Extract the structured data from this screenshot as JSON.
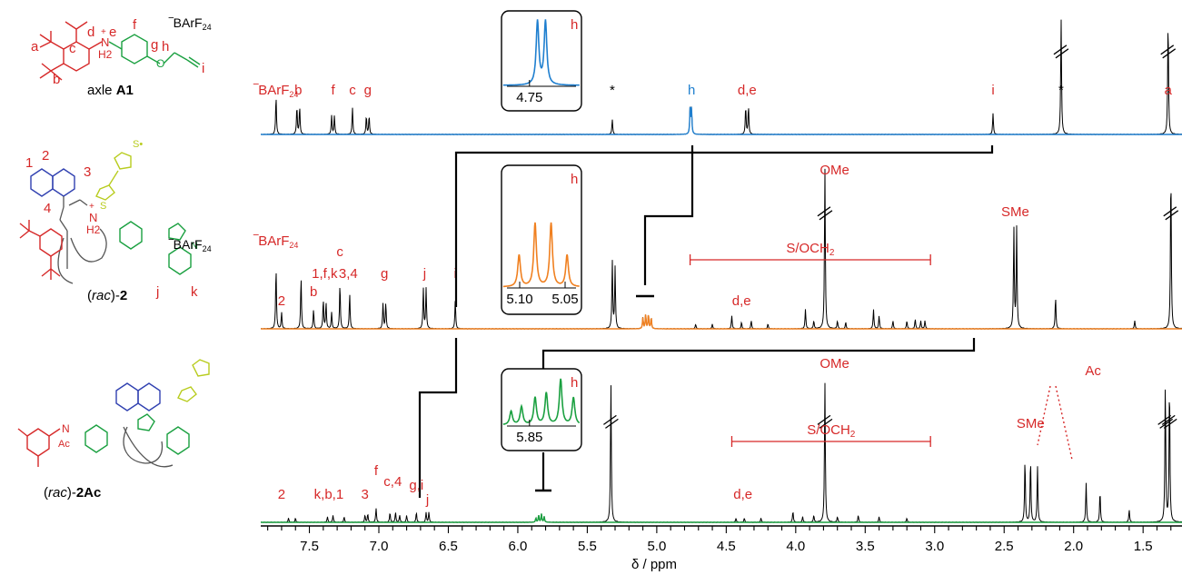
{
  "chart_data": {
    "type": "line",
    "xlabel": "δ / ppm",
    "xlim": [
      7.85,
      1.22
    ],
    "x_ticks": [
      "7.5",
      "7.0",
      "6.5",
      "6.0",
      "5.5",
      "5.0",
      "4.5",
      "4.0",
      "3.5",
      "3.0",
      "2.5",
      "2.0",
      "1.5"
    ],
    "colors": {
      "label": "#d62828",
      "trace": "#000000",
      "blue": "#1f7fcf",
      "orange": "#f08020",
      "green": "#1aa040",
      "lime": "#b8cc1e",
      "naph": "#3040b0"
    },
    "series": [
      {
        "compound": "axle A1",
        "compound_prefix": "axle ",
        "compound_bold": "A1",
        "counterion": "‾BArF24",
        "peaks": [
          {
            "x": 7.74,
            "h": 0.33
          },
          {
            "x": 7.59,
            "h": 0.24
          },
          {
            "x": 7.57,
            "h": 0.24
          },
          {
            "x": 7.34,
            "h": 0.16
          },
          {
            "x": 7.32,
            "h": 0.16
          },
          {
            "x": 7.19,
            "h": 0.23
          },
          {
            "x": 7.09,
            "h": 0.16
          },
          {
            "x": 7.07,
            "h": 0.16
          },
          {
            "x": 5.32,
            "h": 0.13
          },
          {
            "x": 4.76,
            "h": 0.22,
            "color": "blue"
          },
          {
            "x": 4.75,
            "h": 0.22,
            "color": "blue"
          },
          {
            "x": 4.36,
            "h": 0.24
          },
          {
            "x": 4.34,
            "h": 0.24
          },
          {
            "x": 2.58,
            "h": 0.18
          },
          {
            "x": 2.09,
            "h": 1.0,
            "broken": true
          },
          {
            "x": 1.32,
            "h": 1.0,
            "broken": true
          }
        ],
        "labels": [
          {
            "x": 7.74,
            "text": "‾BArF24"
          },
          {
            "x": 7.58,
            "text": "b"
          },
          {
            "x": 7.33,
            "text": "f"
          },
          {
            "x": 7.19,
            "text": "c"
          },
          {
            "x": 7.08,
            "text": "g"
          },
          {
            "x": 5.32,
            "text": "*",
            "black": true
          },
          {
            "x": 4.75,
            "text": "h",
            "color": "blue"
          },
          {
            "x": 4.35,
            "text": "d,e"
          },
          {
            "x": 2.58,
            "text": "i"
          },
          {
            "x": 2.09,
            "text": "*",
            "black": true
          },
          {
            "x": 1.32,
            "text": "a"
          }
        ],
        "inset": {
          "label": "h",
          "tick": "4.75",
          "color": "blue"
        }
      },
      {
        "compound": "(rac)-2",
        "compound_prefix": "(",
        "compound_italic": "rac",
        "compound_mid": ")-",
        "compound_bold": "2",
        "counterion": "‾BArF24",
        "peaks": [
          {
            "x": 7.74,
            "h": 0.38
          },
          {
            "x": 7.7,
            "h": 0.1
          },
          {
            "x": 7.56,
            "h": 0.32
          },
          {
            "x": 7.47,
            "h": 0.12
          },
          {
            "x": 7.4,
            "h": 0.18
          },
          {
            "x": 7.38,
            "h": 0.16
          },
          {
            "x": 7.34,
            "h": 0.1
          },
          {
            "x": 7.28,
            "h": 0.28
          },
          {
            "x": 7.21,
            "h": 0.22
          },
          {
            "x": 6.97,
            "h": 0.16
          },
          {
            "x": 6.95,
            "h": 0.16
          },
          {
            "x": 6.68,
            "h": 0.25
          },
          {
            "x": 6.66,
            "h": 0.25
          },
          {
            "x": 6.45,
            "h": 0.18
          },
          {
            "x": 5.32,
            "h": 0.42
          },
          {
            "x": 5.3,
            "h": 0.38
          },
          {
            "x": 5.1,
            "h": 0.07,
            "color": "orange"
          },
          {
            "x": 5.08,
            "h": 0.09,
            "color": "orange"
          },
          {
            "x": 5.06,
            "h": 0.09,
            "color": "orange"
          },
          {
            "x": 5.04,
            "h": 0.07,
            "color": "orange"
          },
          {
            "x": 4.72,
            "h": 0.03
          },
          {
            "x": 4.6,
            "h": 0.03
          },
          {
            "x": 4.46,
            "h": 0.08
          },
          {
            "x": 4.39,
            "h": 0.04
          },
          {
            "x": 4.32,
            "h": 0.05
          },
          {
            "x": 4.2,
            "h": 0.03
          },
          {
            "x": 3.93,
            "h": 0.12
          },
          {
            "x": 3.87,
            "h": 0.05
          },
          {
            "x": 3.79,
            "h": 1.0,
            "broken": true
          },
          {
            "x": 3.7,
            "h": 0.05
          },
          {
            "x": 3.64,
            "h": 0.04
          },
          {
            "x": 3.44,
            "h": 0.12
          },
          {
            "x": 3.4,
            "h": 0.08
          },
          {
            "x": 3.3,
            "h": 0.05
          },
          {
            "x": 3.2,
            "h": 0.05
          },
          {
            "x": 3.14,
            "h": 0.06
          },
          {
            "x": 3.1,
            "h": 0.05
          },
          {
            "x": 3.07,
            "h": 0.05
          },
          {
            "x": 2.43,
            "h": 0.62
          },
          {
            "x": 2.41,
            "h": 0.62
          },
          {
            "x": 2.13,
            "h": 0.2
          },
          {
            "x": 1.56,
            "h": 0.05
          },
          {
            "x": 1.3,
            "h": 1.0,
            "broken": true
          }
        ],
        "labels": [
          {
            "x": 7.74,
            "text": "‾BArF24",
            "up": 92
          },
          {
            "x": 7.7,
            "text": "2",
            "up": 26
          },
          {
            "x": 7.47,
            "text": "b",
            "up": 36
          },
          {
            "x": 7.39,
            "text": "1,f,k",
            "up": 56
          },
          {
            "x": 7.28,
            "text": "c",
            "up": 80
          },
          {
            "x": 7.22,
            "text": "3,4",
            "up": 56
          },
          {
            "x": 6.96,
            "text": "g",
            "up": 56
          },
          {
            "x": 6.67,
            "text": "j",
            "up": 56
          },
          {
            "x": 6.45,
            "text": "i",
            "up": 56
          },
          {
            "x": 4.39,
            "text": "d,e",
            "up": 26
          },
          {
            "x": 3.72,
            "text": "OMe",
            "up": 170
          },
          {
            "x": 2.42,
            "text": "SMe",
            "up": 124
          }
        ],
        "bracket": {
          "x1": 4.76,
          "x2": 3.03,
          "label": "S/OCH2"
        },
        "inset": {
          "label": "h",
          "ticks": [
            "5.10",
            "5.05"
          ],
          "color": "orange"
        }
      },
      {
        "compound": "(rac)-2Ac",
        "compound_prefix": "(",
        "compound_italic": "rac",
        "compound_mid": ")-",
        "compound_bold": "2Ac",
        "peaks": [
          {
            "x": 7.65,
            "h": 0.03
          },
          {
            "x": 7.6,
            "h": 0.03
          },
          {
            "x": 7.37,
            "h": 0.04
          },
          {
            "x": 7.33,
            "h": 0.05
          },
          {
            "x": 7.25,
            "h": 0.04
          },
          {
            "x": 7.1,
            "h": 0.05
          },
          {
            "x": 7.08,
            "h": 0.06
          },
          {
            "x": 7.02,
            "h": 0.1
          },
          {
            "x": 6.92,
            "h": 0.07
          },
          {
            "x": 6.88,
            "h": 0.07
          },
          {
            "x": 6.85,
            "h": 0.05
          },
          {
            "x": 6.8,
            "h": 0.05
          },
          {
            "x": 6.73,
            "h": 0.07
          },
          {
            "x": 6.66,
            "h": 0.07
          },
          {
            "x": 6.64,
            "h": 0.07
          },
          {
            "x": 5.87,
            "h": 0.03,
            "color": "green"
          },
          {
            "x": 5.85,
            "h": 0.05,
            "color": "green"
          },
          {
            "x": 5.83,
            "h": 0.06,
            "color": "green"
          },
          {
            "x": 5.81,
            "h": 0.04,
            "color": "green"
          },
          {
            "x": 5.33,
            "h": 1.0,
            "broken": true
          },
          {
            "x": 4.43,
            "h": 0.03
          },
          {
            "x": 4.37,
            "h": 0.03
          },
          {
            "x": 4.25,
            "h": 0.03
          },
          {
            "x": 4.02,
            "h": 0.08
          },
          {
            "x": 3.95,
            "h": 0.04
          },
          {
            "x": 3.87,
            "h": 0.05
          },
          {
            "x": 3.79,
            "h": 1.0,
            "broken": true
          },
          {
            "x": 3.7,
            "h": 0.04
          },
          {
            "x": 3.55,
            "h": 0.05
          },
          {
            "x": 3.4,
            "h": 0.04
          },
          {
            "x": 3.2,
            "h": 0.03
          },
          {
            "x": 2.35,
            "h": 0.45
          },
          {
            "x": 2.31,
            "h": 0.45
          },
          {
            "x": 2.26,
            "h": 0.4
          },
          {
            "x": 1.91,
            "h": 0.28
          },
          {
            "x": 1.81,
            "h": 0.22
          },
          {
            "x": 1.6,
            "h": 0.09
          },
          {
            "x": 1.34,
            "h": 1.0,
            "broken": true
          },
          {
            "x": 1.31,
            "h": 1.0,
            "broken": true
          }
        ],
        "labels": [
          {
            "x": 7.7,
            "text": "2",
            "up": 26
          },
          {
            "x": 7.36,
            "text": "k,b,1",
            "up": 26
          },
          {
            "x": 7.1,
            "text": "3",
            "up": 26
          },
          {
            "x": 7.02,
            "text": "f",
            "up": 52
          },
          {
            "x": 6.9,
            "text": "c,4",
            "up": 40
          },
          {
            "x": 6.73,
            "text": "g,i",
            "up": 36
          },
          {
            "x": 6.65,
            "text": "j",
            "up": 20
          },
          {
            "x": 4.38,
            "text": "d,e",
            "up": 26
          },
          {
            "x": 3.72,
            "text": "OMe",
            "up": 170
          },
          {
            "x": 2.31,
            "text": "SMe",
            "up": 104
          },
          {
            "x": 1.86,
            "text": "Ac",
            "up": 162
          }
        ],
        "bracket": {
          "x1": 4.46,
          "x2": 3.03,
          "label": "S/OCH2"
        },
        "inset": {
          "label": "h",
          "tick": "5.85",
          "color": "green"
        }
      }
    ],
    "labels": {
      "a": "a",
      "b": "b",
      "c": "c",
      "d": "d",
      "e": "e",
      "f": "f",
      "g": "g",
      "h": "h",
      "i": "i",
      "one": "1",
      "two": "2",
      "three": "3",
      "four": "4",
      "j": "j",
      "k": "k",
      "h2": "H2",
      "nplus": "+",
      "n": "N",
      "o": "O",
      "s": "S",
      "ac": "Ac",
      "sdot": "S•",
      "hh": "H"
    }
  }
}
